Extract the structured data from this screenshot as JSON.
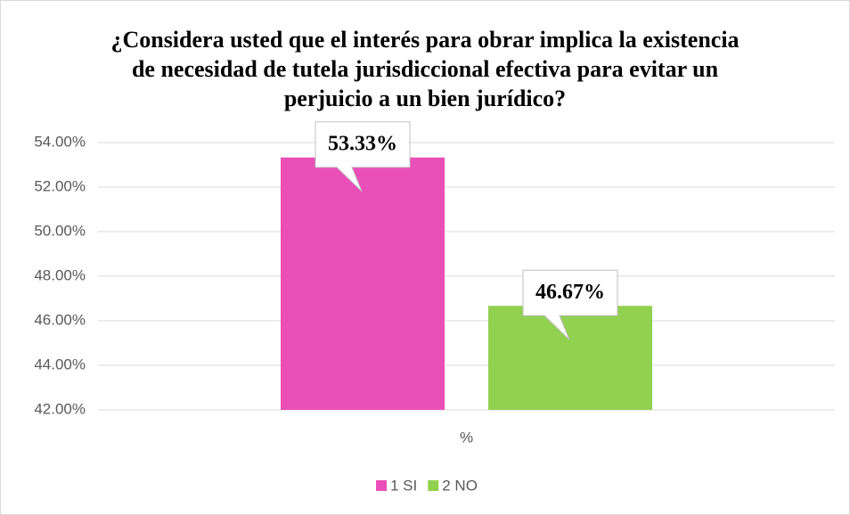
{
  "chart_data": {
    "type": "bar",
    "title": "¿Considera usted que el interés para obrar implica la existencia de necesidad de tutela jurisdiccional efectiva para evitar un perjuicio a un bien jurídico?",
    "categories": [
      "%"
    ],
    "series": [
      {
        "name": "1 SI",
        "color": "#ea4fb8",
        "values": [
          53.33
        ],
        "value_labels": [
          "53.33%"
        ]
      },
      {
        "name": "2 NO",
        "color": "#92d050",
        "values": [
          46.67
        ],
        "value_labels": [
          "46.67%"
        ]
      }
    ],
    "ylim": [
      42,
      54
    ],
    "yticks": [
      {
        "value": 42,
        "label": "42.00%"
      },
      {
        "value": 44,
        "label": "44.00%"
      },
      {
        "value": 46,
        "label": "46.00%"
      },
      {
        "value": 48,
        "label": "48.00%"
      },
      {
        "value": 50,
        "label": "50.00%"
      },
      {
        "value": 52,
        "label": "52.00%"
      },
      {
        "value": 54,
        "label": "54.00%"
      }
    ],
    "grid": true,
    "legend": "bottom"
  }
}
